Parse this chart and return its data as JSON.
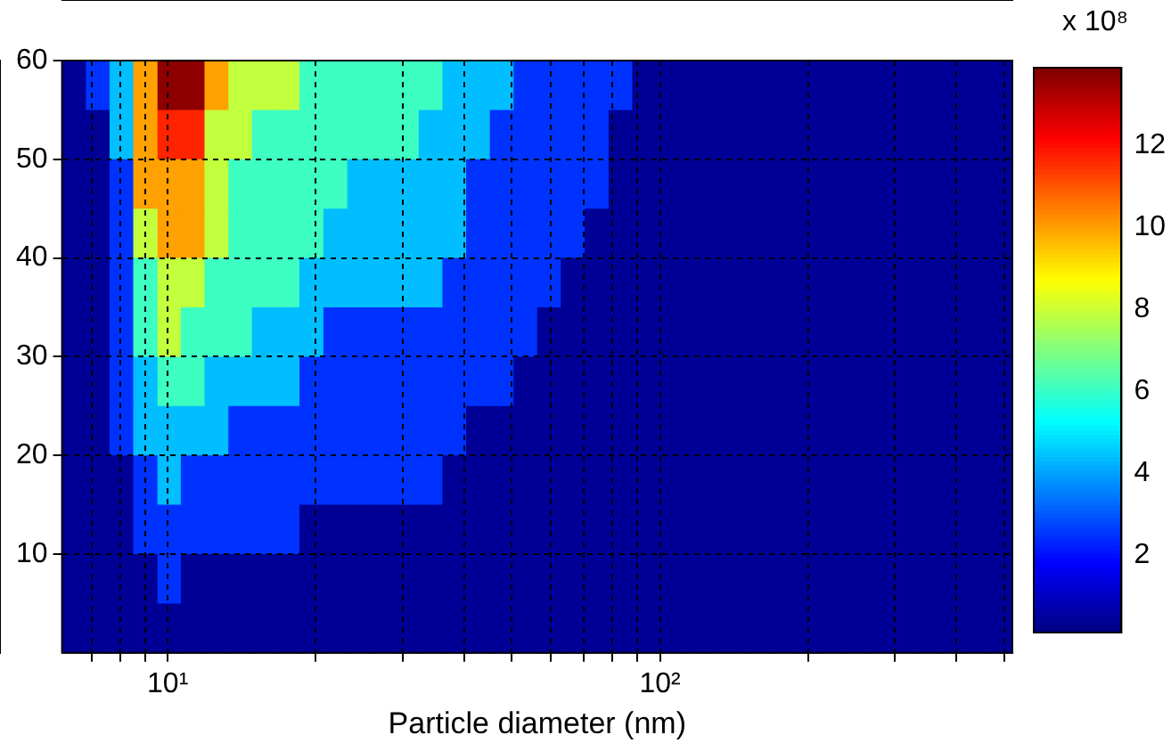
{
  "chart_data": {
    "type": "heatmap",
    "xlabel": "Particle diameter (nm)",
    "clabel": "x 10⁸",
    "log": "x",
    "grid": true,
    "xlim": [
      6.1,
      520
    ],
    "xticks": [
      {
        "value": 7,
        "label": null
      },
      {
        "value": 8,
        "label": null
      },
      {
        "value": 9,
        "label": null
      },
      {
        "value": 10,
        "label": "10¹"
      },
      {
        "value": 20,
        "label": null
      },
      {
        "value": 30,
        "label": null
      },
      {
        "value": 40,
        "label": null
      },
      {
        "value": 50,
        "label": null
      },
      {
        "value": 60,
        "label": null
      },
      {
        "value": 70,
        "label": null
      },
      {
        "value": 80,
        "label": null
      },
      {
        "value": 90,
        "label": null
      },
      {
        "value": 100,
        "label": "10²"
      },
      {
        "value": 200,
        "label": null
      },
      {
        "value": 300,
        "label": null
      },
      {
        "value": 400,
        "label": null
      },
      {
        "value": 500,
        "label": null
      }
    ],
    "ylim": [
      0,
      60
    ],
    "yticks": [
      10,
      20,
      30,
      40,
      50,
      60
    ],
    "clim": [
      0.1,
      13.9
    ],
    "cticks": [
      2,
      4,
      6,
      8,
      10,
      12
    ],
    "x": [
      6.45,
      7.21,
      8.05,
      9,
      10.1,
      11.2,
      12.6,
      14,
      15.7,
      17.5,
      19.6,
      21.9,
      24.5,
      27.4,
      30.6,
      34.2,
      38.2,
      42.7,
      47.7,
      53.3,
      59.5,
      66.5,
      74.4,
      83.1,
      92.9,
      104,
      116,
      130,
      145,
      162,
      181,
      202,
      226,
      253,
      282,
      315,
      353,
      394,
      440,
      492
    ],
    "y": [
      57.5,
      52.5,
      47.5,
      42.5,
      37.5,
      32.5,
      27.5,
      22.5,
      17.5,
      12.5,
      7.5,
      2.5
    ],
    "cells": [
      [
        0.4,
        2.5,
        4.4,
        10,
        13.7,
        13.7,
        10,
        7.9,
        7.9,
        7.9,
        6.1,
        6.1,
        6.1,
        6.1,
        6.1,
        6.1,
        4.4,
        4.4,
        4.4,
        2.5,
        2.5,
        2.5,
        2.5,
        2.5,
        0.4,
        0.4,
        0.4,
        0.4,
        0.4,
        0.4,
        0.4,
        0.4,
        0.4,
        0.4,
        0.4,
        0.4,
        0.4,
        0.4,
        0.4,
        0.4
      ],
      [
        0.4,
        0.4,
        4.4,
        10,
        11.7,
        11.7,
        7.9,
        7.9,
        6.1,
        6.1,
        6.1,
        6.1,
        6.1,
        6.1,
        6.1,
        4.4,
        4.4,
        4.4,
        2.5,
        2.5,
        2.5,
        2.5,
        2.5,
        0.4,
        0.4,
        0.4,
        0.4,
        0.4,
        0.4,
        0.4,
        0.4,
        0.4,
        0.4,
        0.4,
        0.4,
        0.4,
        0.4,
        0.4,
        0.4,
        0.4
      ],
      [
        0.4,
        0.4,
        2.5,
        10,
        10,
        10,
        7.9,
        6.1,
        6.1,
        6.1,
        6.1,
        6.1,
        4.4,
        4.4,
        4.4,
        4.4,
        4.4,
        2.5,
        2.5,
        2.5,
        2.5,
        2.5,
        2.5,
        0.4,
        0.4,
        0.4,
        0.4,
        0.4,
        0.4,
        0.4,
        0.4,
        0.4,
        0.4,
        0.4,
        0.4,
        0.4,
        0.4,
        0.4,
        0.4,
        0.4
      ],
      [
        0.4,
        0.4,
        2.5,
        7.9,
        10,
        10,
        7.9,
        6.1,
        6.1,
        6.1,
        6.1,
        4.4,
        4.4,
        4.4,
        4.4,
        4.4,
        4.4,
        2.5,
        2.5,
        2.5,
        2.5,
        2.5,
        0.4,
        0.4,
        0.4,
        0.4,
        0.4,
        0.4,
        0.4,
        0.4,
        0.4,
        0.4,
        0.4,
        0.4,
        0.4,
        0.4,
        0.4,
        0.4,
        0.4,
        0.4
      ],
      [
        0.4,
        0.4,
        2.5,
        6.1,
        7.9,
        7.9,
        6.1,
        6.1,
        6.1,
        6.1,
        4.4,
        4.4,
        4.4,
        4.4,
        4.4,
        4.4,
        2.5,
        2.5,
        2.5,
        2.5,
        2.5,
        0.4,
        0.4,
        0.4,
        0.4,
        0.4,
        0.4,
        0.4,
        0.4,
        0.4,
        0.4,
        0.4,
        0.4,
        0.4,
        0.4,
        0.4,
        0.4,
        0.4,
        0.4,
        0.4
      ],
      [
        0.4,
        0.4,
        2.5,
        6.1,
        7.9,
        6.1,
        6.1,
        6.1,
        4.4,
        4.4,
        4.4,
        2.5,
        2.5,
        2.5,
        2.5,
        2.5,
        2.5,
        2.5,
        2.5,
        2.5,
        0.4,
        0.4,
        0.4,
        0.4,
        0.4,
        0.4,
        0.4,
        0.4,
        0.4,
        0.4,
        0.4,
        0.4,
        0.4,
        0.4,
        0.4,
        0.4,
        0.4,
        0.4,
        0.4,
        0.4
      ],
      [
        0.4,
        0.4,
        2.5,
        4.4,
        6.1,
        6.1,
        4.4,
        4.4,
        4.4,
        4.4,
        2.5,
        2.5,
        2.5,
        2.5,
        2.5,
        2.5,
        2.5,
        2.5,
        2.5,
        0.4,
        0.4,
        0.4,
        0.4,
        0.4,
        0.4,
        0.4,
        0.4,
        0.4,
        0.4,
        0.4,
        0.4,
        0.4,
        0.4,
        0.4,
        0.4,
        0.4,
        0.4,
        0.4,
        0.4,
        0.4
      ],
      [
        0.4,
        0.4,
        2.5,
        4.4,
        4.4,
        4.4,
        4.4,
        2.5,
        2.5,
        2.5,
        2.5,
        2.5,
        2.5,
        2.5,
        2.5,
        2.5,
        2.5,
        0.4,
        0.4,
        0.4,
        0.4,
        0.4,
        0.4,
        0.4,
        0.4,
        0.4,
        0.4,
        0.4,
        0.4,
        0.4,
        0.4,
        0.4,
        0.4,
        0.4,
        0.4,
        0.4,
        0.4,
        0.4,
        0.4,
        0.4
      ],
      [
        0.4,
        0.4,
        0.4,
        2.5,
        4.4,
        2.5,
        2.5,
        2.5,
        2.5,
        2.5,
        2.5,
        2.5,
        2.5,
        2.5,
        2.5,
        2.5,
        0.4,
        0.4,
        0.4,
        0.4,
        0.4,
        0.4,
        0.4,
        0.4,
        0.4,
        0.4,
        0.4,
        0.4,
        0.4,
        0.4,
        0.4,
        0.4,
        0.4,
        0.4,
        0.4,
        0.4,
        0.4,
        0.4,
        0.4,
        0.4
      ],
      [
        0.4,
        0.4,
        0.4,
        2.5,
        2.5,
        2.5,
        2.5,
        2.5,
        2.5,
        2.5,
        0.4,
        0.4,
        0.4,
        0.4,
        0.4,
        0.4,
        0.4,
        0.4,
        0.4,
        0.4,
        0.4,
        0.4,
        0.4,
        0.4,
        0.4,
        0.4,
        0.4,
        0.4,
        0.4,
        0.4,
        0.4,
        0.4,
        0.4,
        0.4,
        0.4,
        0.4,
        0.4,
        0.4,
        0.4,
        0.4
      ],
      [
        0.4,
        0.4,
        0.4,
        0.4,
        2.5,
        0.4,
        0.4,
        0.4,
        0.4,
        0.4,
        0.4,
        0.4,
        0.4,
        0.4,
        0.4,
        0.4,
        0.4,
        0.4,
        0.4,
        0.4,
        0.4,
        0.4,
        0.4,
        0.4,
        0.4,
        0.4,
        0.4,
        0.4,
        0.4,
        0.4,
        0.4,
        0.4,
        0.4,
        0.4,
        0.4,
        0.4,
        0.4,
        0.4,
        0.4,
        0.4
      ],
      [
        0.4,
        0.4,
        0.4,
        0.4,
        0.4,
        0.4,
        0.4,
        0.4,
        0.4,
        0.4,
        0.4,
        0.4,
        0.4,
        0.4,
        0.4,
        0.4,
        0.4,
        0.4,
        0.4,
        0.4,
        0.4,
        0.4,
        0.4,
        0.4,
        0.4,
        0.4,
        0.4,
        0.4,
        0.4,
        0.4,
        0.4,
        0.4,
        0.4,
        0.4,
        0.4,
        0.4,
        0.4,
        0.4,
        0.4,
        0.4
      ]
    ]
  }
}
